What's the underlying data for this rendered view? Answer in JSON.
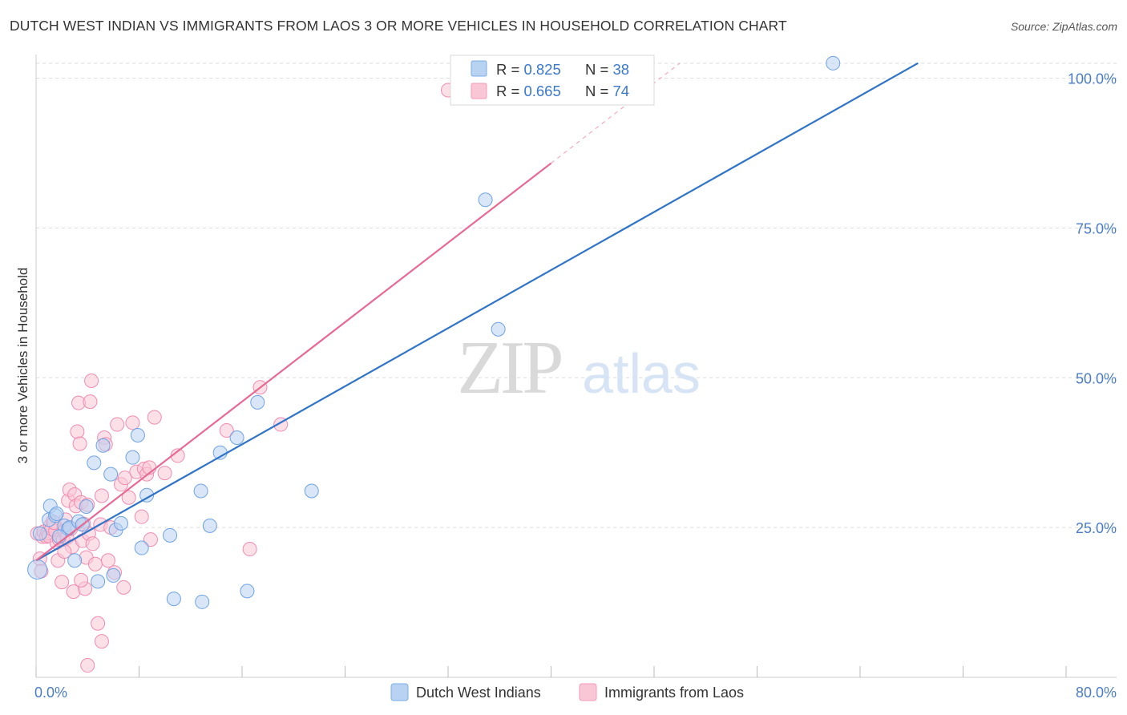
{
  "title": "DUTCH WEST INDIAN VS IMMIGRANTS FROM LAOS 3 OR MORE VEHICLES IN HOUSEHOLD CORRELATION CHART",
  "source": "Source: ZipAtlas.com",
  "watermark": {
    "zip": "ZIP",
    "atlas": "atlas"
  },
  "legend_box": {
    "rows": [
      {
        "r_label": "R = ",
        "r_value": "0.825",
        "n_label": "N = ",
        "n_value": "38",
        "color": "#7aaee8"
      },
      {
        "r_label": "R = ",
        "r_value": "0.665",
        "n_label": "N = ",
        "n_value": "74",
        "color": "#f49ab8"
      }
    ]
  },
  "bottom_legend": [
    {
      "label": "Dutch West Indians",
      "color": "#7aaee8"
    },
    {
      "label": "Immigrants from Laos",
      "color": "#f49ab8"
    }
  ],
  "colors": {
    "blue_line": "#2f74c9",
    "pink_line": "#e86992",
    "blue_fill": "#b8d2f2",
    "pink_fill": "#f9c6d6",
    "tick_text": "#4a7cc8"
  },
  "chart_data": {
    "type": "scatter",
    "title": "DUTCH WEST INDIAN VS IMMIGRANTS FROM LAOS 3 OR MORE VEHICLES IN HOUSEHOLD CORRELATION CHART",
    "xlabel": "",
    "ylabel": "3 or more Vehicles in Household",
    "xlim": [
      0,
      80
    ],
    "ylim": [
      0,
      100
    ],
    "x_tick_labels": [
      "0.0%",
      "80.0%"
    ],
    "y_tick_labels": [
      "25.0%",
      "50.0%",
      "75.0%",
      "100.0%"
    ],
    "y_ticks": [
      25,
      50,
      75,
      100
    ],
    "grid": true,
    "legend_position": "top-center",
    "series": [
      {
        "name": "Dutch West Indians",
        "R": 0.825,
        "N": 38,
        "trend": {
          "x": [
            0,
            68.5
          ],
          "y": [
            19.5,
            102.5
          ]
        },
        "points": [
          [
            0.1,
            18.0
          ],
          [
            1.0,
            26.3
          ],
          [
            1.1,
            28.6
          ],
          [
            1.5,
            27.0
          ],
          [
            1.6,
            27.3
          ],
          [
            2.2,
            25.3
          ],
          [
            2.5,
            24.8
          ],
          [
            2.6,
            25.0
          ],
          [
            3.0,
            19.5
          ],
          [
            3.3,
            26.0
          ],
          [
            3.6,
            25.5
          ],
          [
            3.9,
            28.5
          ],
          [
            4.5,
            35.8
          ],
          [
            4.8,
            16.0
          ],
          [
            5.2,
            38.7
          ],
          [
            5.8,
            33.9
          ],
          [
            6.0,
            17.0
          ],
          [
            6.2,
            24.6
          ],
          [
            6.6,
            25.7
          ],
          [
            7.5,
            36.7
          ],
          [
            7.9,
            40.4
          ],
          [
            8.2,
            21.6
          ],
          [
            8.6,
            30.4
          ],
          [
            10.4,
            23.7
          ],
          [
            10.7,
            13.1
          ],
          [
            12.8,
            31.1
          ],
          [
            12.9,
            12.6
          ],
          [
            13.5,
            25.3
          ],
          [
            14.3,
            37.5
          ],
          [
            15.6,
            40.0
          ],
          [
            16.4,
            14.4
          ],
          [
            17.2,
            45.9
          ],
          [
            21.4,
            31.1
          ],
          [
            34.9,
            79.7
          ],
          [
            35.9,
            58.1
          ],
          [
            61.9,
            102.5
          ],
          [
            0.3,
            24.0
          ],
          [
            1.8,
            23.5
          ]
        ]
      },
      {
        "name": "Immigrants from Laos",
        "R": 0.665,
        "N": 74,
        "trend": {
          "x": [
            0,
            40
          ],
          "y": [
            19.5,
            85.8
          ]
        },
        "trend_dashed": {
          "x": [
            40,
            50
          ],
          "y": [
            85.8,
            102.5
          ]
        },
        "points": [
          [
            0.1,
            24.0
          ],
          [
            0.3,
            19.8
          ],
          [
            0.5,
            23.5
          ],
          [
            0.6,
            24.3
          ],
          [
            0.8,
            23.5
          ],
          [
            0.9,
            24.1
          ],
          [
            1.0,
            23.6
          ],
          [
            1.1,
            25.3
          ],
          [
            1.2,
            24.8
          ],
          [
            1.3,
            26.0
          ],
          [
            1.5,
            24.4
          ],
          [
            1.6,
            22.5
          ],
          [
            1.7,
            19.5
          ],
          [
            1.8,
            23.0
          ],
          [
            2.0,
            15.9
          ],
          [
            2.1,
            23.0
          ],
          [
            2.2,
            24.5
          ],
          [
            2.3,
            26.3
          ],
          [
            2.4,
            23.3
          ],
          [
            2.5,
            29.5
          ],
          [
            2.6,
            31.3
          ],
          [
            2.7,
            24.8
          ],
          [
            2.8,
            21.8
          ],
          [
            2.9,
            14.3
          ],
          [
            3.0,
            30.5
          ],
          [
            3.1,
            28.6
          ],
          [
            3.2,
            41.0
          ],
          [
            3.3,
            45.8
          ],
          [
            3.4,
            39.0
          ],
          [
            3.5,
            29.2
          ],
          [
            3.6,
            22.8
          ],
          [
            3.7,
            25.6
          ],
          [
            3.8,
            14.8
          ],
          [
            3.9,
            20.0
          ],
          [
            4.0,
            28.8
          ],
          [
            4.1,
            24.0
          ],
          [
            4.2,
            46.0
          ],
          [
            4.3,
            49.5
          ],
          [
            4.4,
            22.3
          ],
          [
            4.6,
            18.9
          ],
          [
            4.8,
            9.0
          ],
          [
            5.0,
            25.5
          ],
          [
            5.1,
            30.3
          ],
          [
            5.3,
            40.0
          ],
          [
            5.4,
            38.9
          ],
          [
            5.6,
            19.5
          ],
          [
            5.8,
            25.0
          ],
          [
            6.1,
            17.5
          ],
          [
            6.3,
            42.2
          ],
          [
            6.6,
            32.2
          ],
          [
            6.8,
            15.0
          ],
          [
            6.9,
            33.3
          ],
          [
            7.2,
            30.0
          ],
          [
            7.5,
            42.5
          ],
          [
            7.8,
            34.3
          ],
          [
            8.2,
            26.8
          ],
          [
            8.4,
            34.8
          ],
          [
            8.6,
            33.9
          ],
          [
            8.8,
            35.0
          ],
          [
            8.9,
            23.0
          ],
          [
            9.2,
            43.4
          ],
          [
            10.0,
            34.1
          ],
          [
            11.0,
            37.0
          ],
          [
            14.8,
            41.2
          ],
          [
            16.6,
            21.4
          ],
          [
            17.4,
            48.4
          ],
          [
            19.0,
            42.2
          ],
          [
            32.0,
            98.0
          ],
          [
            0.4,
            17.7
          ],
          [
            1.4,
            25.8
          ],
          [
            2.2,
            21.0
          ],
          [
            5.1,
            6.0
          ],
          [
            4.0,
            2.0
          ],
          [
            3.5,
            16.2
          ]
        ]
      }
    ]
  }
}
